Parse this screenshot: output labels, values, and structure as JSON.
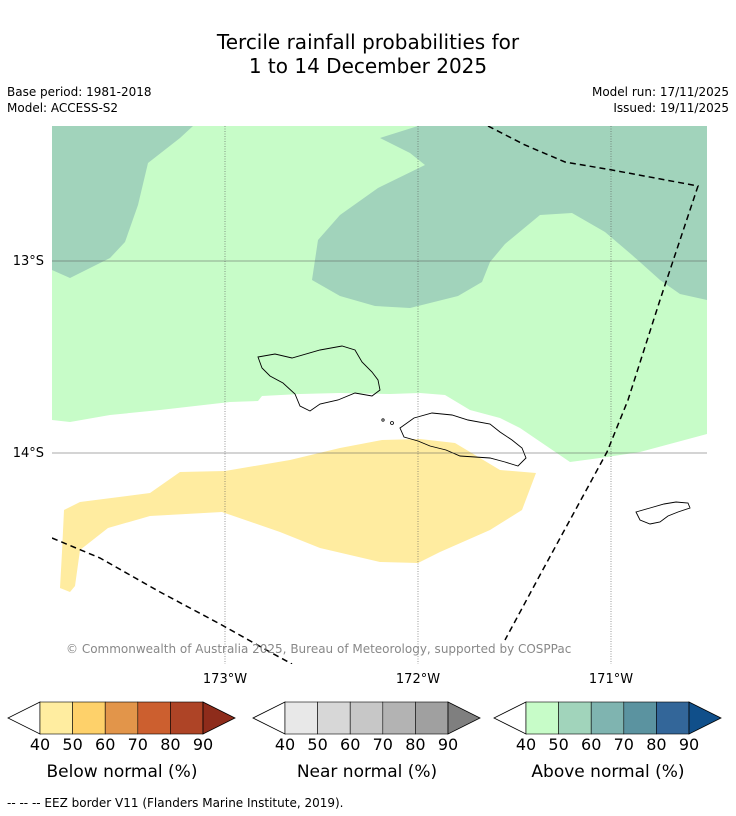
{
  "title": {
    "line1": "Tercile rainfall probabilities for",
    "line2": "1 to 14 December 2025"
  },
  "meta": {
    "base_period": "Base period: 1981-2018",
    "model": "Model: ACCESS-S2",
    "model_run": "Model run: 17/11/2025",
    "issued": "Issued: 19/11/2025"
  },
  "map": {
    "lat_labels": [
      "13°S",
      "14°S"
    ],
    "lon_labels": [
      "173°W",
      "172°W",
      "171°W"
    ],
    "copyright": "© Commonwealth of Australia 2025, Bureau of Meteorology, supported by COSPPac"
  },
  "legends": [
    {
      "title": "Below normal (%)",
      "ticks": [
        "40",
        "50",
        "60",
        "70",
        "80",
        "90"
      ],
      "colors": [
        "#ffffff",
        "#ffeda0",
        "#fed16a",
        "#e2954a",
        "#cc5f2f",
        "#ae4426",
        "#8e2c1b"
      ]
    },
    {
      "title": "Near normal (%)",
      "ticks": [
        "40",
        "50",
        "60",
        "70",
        "80",
        "90"
      ],
      "colors": [
        "#ffffff",
        "#e8e8e8",
        "#d7d7d7",
        "#c7c7c7",
        "#b3b3b3",
        "#a0a0a0",
        "#7f7f7f"
      ]
    },
    {
      "title": "Above normal (%)",
      "ticks": [
        "40",
        "50",
        "60",
        "70",
        "80",
        "90"
      ],
      "colors": [
        "#ffffff",
        "#c7fcc8",
        "#a1d4bb",
        "#7fb4b0",
        "#5b93a0",
        "#336699",
        "#104f8a"
      ]
    }
  ],
  "footnote": "--  --  -- EEZ border V11 (Flanders Marine Institute, 2019).",
  "palette": {
    "above_50": "#c7fcc8",
    "above_60": "#a1d3bb",
    "below_50": "#ffeca0",
    "grid": "#555555"
  }
}
